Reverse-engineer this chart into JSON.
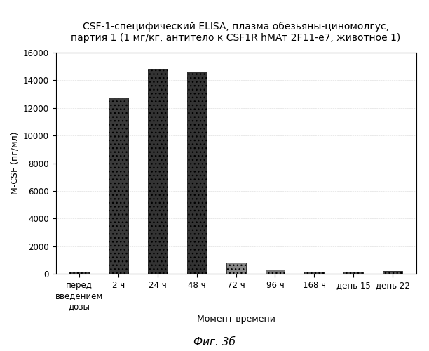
{
  "title_line1": "CSF-1-специфический ELISA, плазма обезьяны-циномолгус,",
  "title_line2": "партия 1 (1 мг/кг, антитело к CSF1R hMAт 2F11-е7, животное 1)",
  "xlabel": "Момент времени",
  "ylabel": "M-CSF (пг/мл)",
  "caption": "Фиг. 3б",
  "categories": [
    "перед\nвведением\nдозы",
    "2 ч",
    "24 ч",
    "48 ч",
    "72 ч",
    "96 ч",
    "168 ч",
    "день 15",
    "день 22"
  ],
  "values": [
    150,
    12750,
    14800,
    14650,
    800,
    320,
    130,
    160,
    190
  ],
  "bar_colors": [
    "#4a4a4a",
    "#3a3a3a",
    "#333333",
    "#333333",
    "#888888",
    "#777777",
    "#555555",
    "#555555",
    "#555555"
  ],
  "bar_hatches": [
    "...",
    "...",
    "...",
    "...",
    "...",
    "...",
    "...",
    "...",
    "..."
  ],
  "ylim": [
    0,
    16000
  ],
  "yticks": [
    0,
    2000,
    4000,
    6000,
    8000,
    10000,
    12000,
    14000,
    16000
  ],
  "background_color": "#ffffff",
  "plot_bg_color": "#ffffff",
  "title_fontsize": 10,
  "axis_fontsize": 9,
  "tick_fontsize": 8.5,
  "caption_fontsize": 11,
  "bar_width": 0.5
}
